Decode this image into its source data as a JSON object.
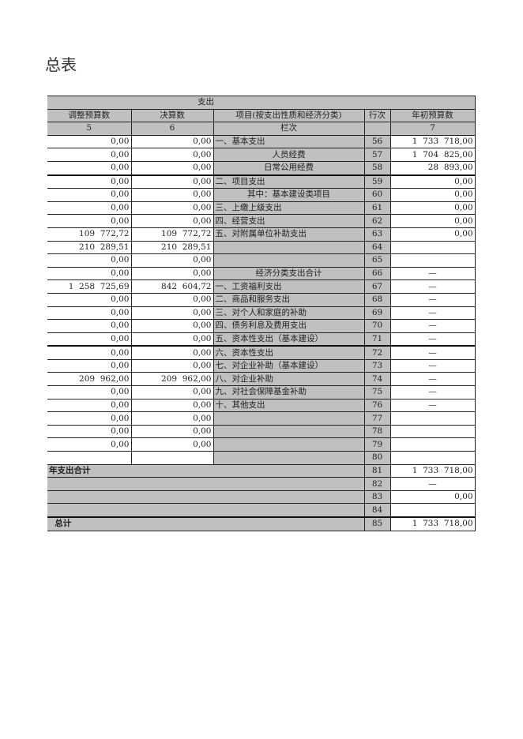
{
  "title": "总表",
  "header": {
    "section": "支出",
    "col5": "调整预算数",
    "col6": "决算数",
    "item": "项目(按支出性质和经济分类)",
    "row_no": "行次",
    "col7": "年初预算数",
    "col5_no": "5",
    "col6_no": "6",
    "item_no": "栏次",
    "col7_no": "7"
  },
  "rows": [
    {
      "c5": "0,00",
      "c6": "0,00",
      "item": "一、基本支出",
      "no": "56",
      "c7": "1  733  718,00",
      "align": "l"
    },
    {
      "c5": "0,00",
      "c6": "0,00",
      "item": "人员经费",
      "no": "57",
      "c7": "1  704  825,00",
      "align": "c"
    },
    {
      "c5": "0,00",
      "c6": "0,00",
      "item": "日常公用经费",
      "no": "58",
      "c7": "28  893,00",
      "align": "c",
      "thick": true
    },
    {
      "c5": "0,00",
      "c6": "0,00",
      "item": "二、项目支出",
      "no": "59",
      "c7": "0,00",
      "align": "l"
    },
    {
      "c5": "0,00",
      "c6": "0,00",
      "item": "其中：基本建设类项目",
      "no": "60",
      "c7": "0,00",
      "align": "c"
    },
    {
      "c5": "0,00",
      "c6": "0,00",
      "item": "三、上缴上级支出",
      "no": "61",
      "c7": "0,00",
      "align": "l"
    },
    {
      "c5": "0,00",
      "c6": "0,00",
      "item": "四、经营支出",
      "no": "62",
      "c7": "0,00",
      "align": "l"
    },
    {
      "c5": "109  772,72",
      "c6": "109  772,72",
      "item": "五、对附属单位补助支出",
      "no": "63",
      "c7": "0,00",
      "align": "l"
    },
    {
      "c5": "210  289,51",
      "c6": "210  289,51",
      "item": "",
      "no": "64",
      "c7": "",
      "align": "l"
    },
    {
      "c5": "0,00",
      "c6": "0,00",
      "item": "",
      "no": "65",
      "c7": "",
      "align": "l"
    },
    {
      "c5": "0,00",
      "c6": "0,00",
      "item": "经济分类支出合计",
      "no": "66",
      "c7": "—",
      "align": "c"
    },
    {
      "c5": "1  258  725,69",
      "c6": "842  604,72",
      "item": "一、工资福利支出",
      "no": "67",
      "c7": "—",
      "align": "l"
    },
    {
      "c5": "0,00",
      "c6": "0,00",
      "item": "二、商品和服务支出",
      "no": "68",
      "c7": "—",
      "align": "l"
    },
    {
      "c5": "0,00",
      "c6": "0,00",
      "item": "三、对个人和家庭的补助",
      "no": "69",
      "c7": "—",
      "align": "l"
    },
    {
      "c5": "0,00",
      "c6": "0,00",
      "item": "四、债务利息及费用支出",
      "no": "70",
      "c7": "—",
      "align": "l"
    },
    {
      "c5": "0,00",
      "c6": "0,00",
      "item": "五、资本性支出（基本建设）",
      "no": "71",
      "c7": "—",
      "align": "l",
      "thick": true
    },
    {
      "c5": "0,00",
      "c6": "0,00",
      "item": "六、资本性支出",
      "no": "72",
      "c7": "—",
      "align": "l"
    },
    {
      "c5": "0,00",
      "c6": "0,00",
      "item": "七、对企业补助（基本建设）",
      "no": "73",
      "c7": "—",
      "align": "l"
    },
    {
      "c5": "209  962,00",
      "c6": "209  962,00",
      "item": "八、对企业补助",
      "no": "74",
      "c7": "—",
      "align": "l"
    },
    {
      "c5": "0,00",
      "c6": "0,00",
      "item": "九、对社会保障基金补助",
      "no": "75",
      "c7": "—",
      "align": "l"
    },
    {
      "c5": "0,00",
      "c6": "0,00",
      "item": "十、其他支出",
      "no": "76",
      "c7": "—",
      "align": "l"
    },
    {
      "c5": "0,00",
      "c6": "0,00",
      "item": "",
      "no": "77",
      "c7": "",
      "align": "l"
    },
    {
      "c5": "0,00",
      "c6": "0,00",
      "item": "",
      "no": "78",
      "c7": "",
      "align": "l"
    },
    {
      "c5": "0,00",
      "c6": "0,00",
      "item": "",
      "no": "79",
      "c7": "",
      "align": "l"
    },
    {
      "c5": "",
      "c6": "",
      "item": "",
      "no": "80",
      "c7": "",
      "align": "l"
    }
  ],
  "summary_rows": [
    {
      "label": "年支出合计",
      "no": "81",
      "c7": "1  733  718,00",
      "c7align": "r"
    },
    {
      "label": "",
      "no": "82",
      "c7": "—",
      "c7align": "c"
    },
    {
      "label": "",
      "no": "83",
      "c7": "0,00",
      "c7align": "r"
    },
    {
      "label": "",
      "no": "84",
      "c7": "",
      "c7align": "r",
      "thick": true
    },
    {
      "label": "  总计",
      "no": "85",
      "c7": "1  733  718,00",
      "c7align": "r"
    }
  ]
}
